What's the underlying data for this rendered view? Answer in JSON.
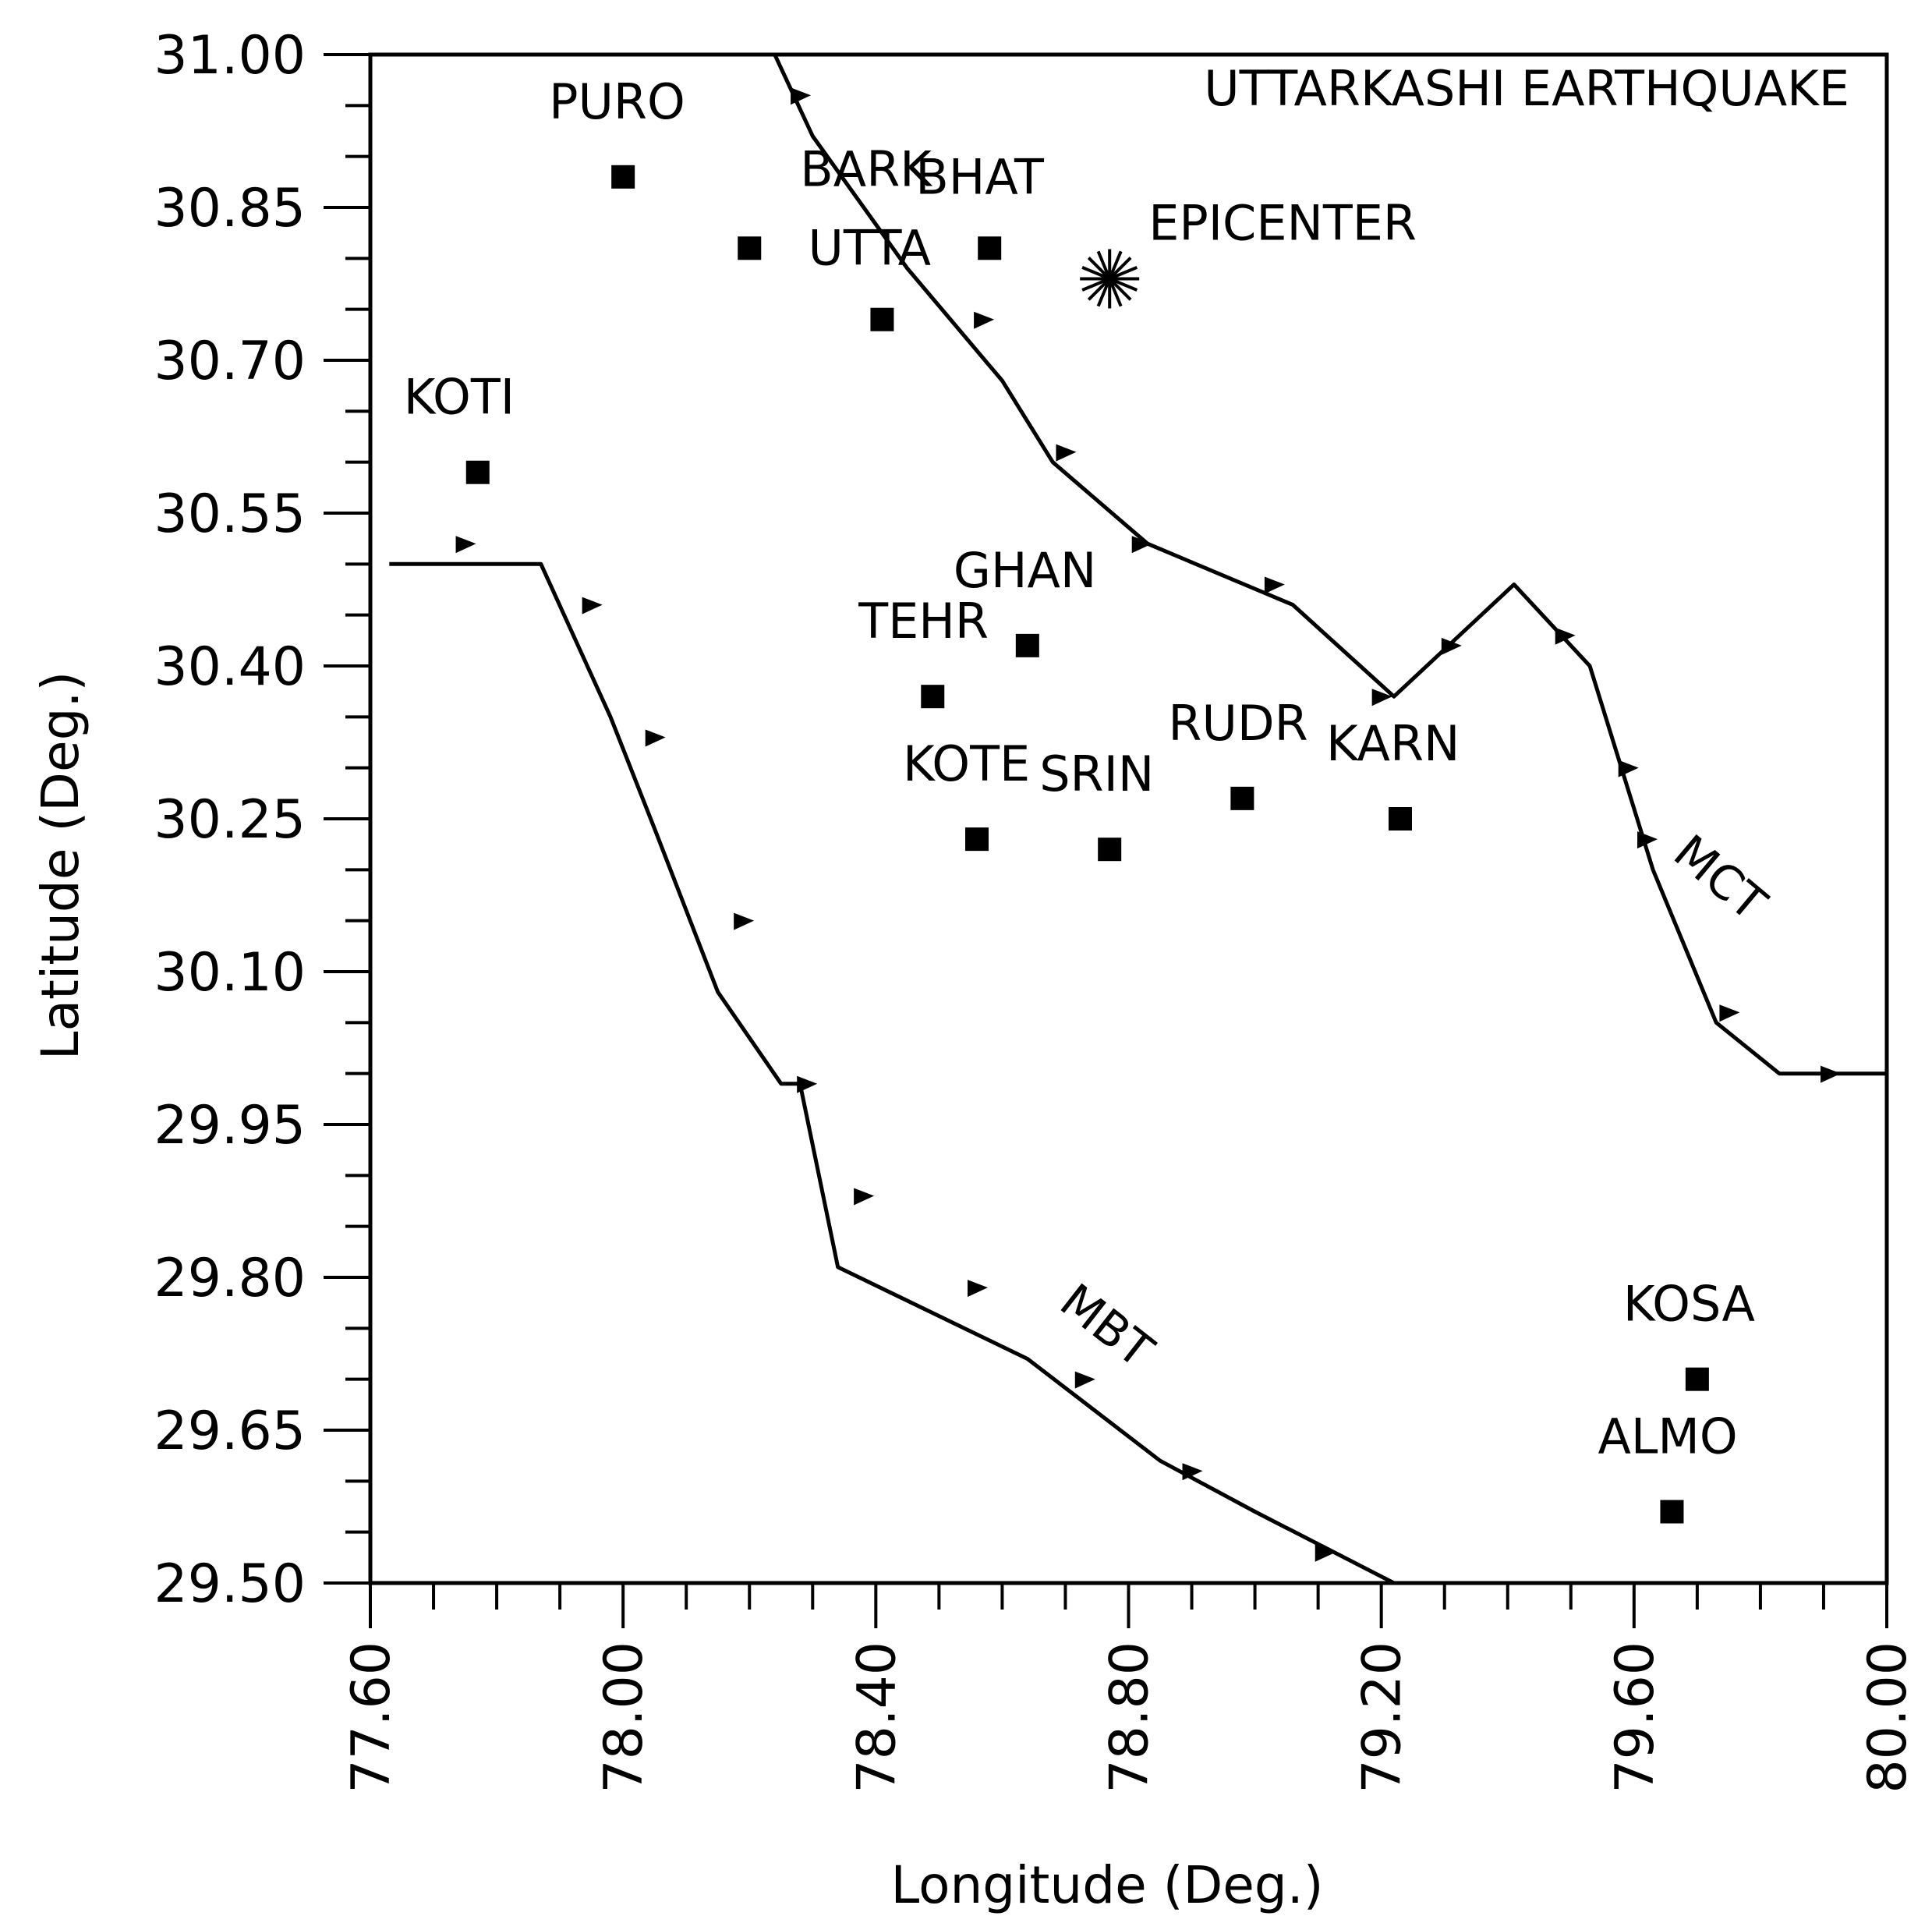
{
  "title": "UTTARKASHI EARTHQUAKE",
  "axes": {
    "x": {
      "label": "Longitude (Deg.)",
      "min": 77.6,
      "max": 80.0,
      "major_step": 0.4,
      "minor_step": 0.1,
      "tick_labels": [
        "77.60",
        "78.00",
        "78.40",
        "78.80",
        "79.20",
        "79.60",
        "80.00"
      ]
    },
    "y": {
      "label": "Latitude (Deg.)",
      "min": 29.5,
      "max": 31.0,
      "major_step": 0.15,
      "minor_step": 0.05,
      "tick_labels": [
        "29.50",
        "29.65",
        "29.80",
        "29.95",
        "30.10",
        "30.25",
        "30.40",
        "30.55",
        "30.70",
        "30.85",
        "31.00"
      ]
    }
  },
  "epicenter": {
    "label": "EPICENTER",
    "lon": 78.77,
    "lat": 30.78
  },
  "stations": [
    {
      "label": "PURO",
      "lon": 78.0,
      "lat": 30.88
    },
    {
      "label": "BARK",
      "lon": 78.2,
      "lat": 30.81
    },
    {
      "label": "BHAT",
      "lon": 78.58,
      "lat": 30.81
    },
    {
      "label": "UTTA",
      "lon": 78.41,
      "lat": 30.74
    },
    {
      "label": "KOTI",
      "lon": 77.77,
      "lat": 30.59
    },
    {
      "label": "GHAN",
      "lon": 78.64,
      "lat": 30.42
    },
    {
      "label": "TEHR",
      "lon": 78.49,
      "lat": 30.37
    },
    {
      "label": "KOTE",
      "lon": 78.56,
      "lat": 30.23
    },
    {
      "label": "SRIN",
      "lon": 78.77,
      "lat": 30.22
    },
    {
      "label": "RUDR",
      "lon": 78.98,
      "lat": 30.27
    },
    {
      "label": "KARN",
      "lon": 79.23,
      "lat": 30.25
    },
    {
      "label": "KOSA",
      "lon": 79.7,
      "lat": 29.7
    },
    {
      "label": "ALMO",
      "lon": 79.66,
      "lat": 29.57
    }
  ],
  "faults": [
    {
      "label": "MCT",
      "path": [
        [
          78.24,
          31.0
        ],
        [
          78.3,
          30.92
        ],
        [
          78.45,
          30.79
        ],
        [
          78.6,
          30.68
        ],
        [
          78.68,
          30.6
        ],
        [
          78.83,
          30.52
        ],
        [
          79.06,
          30.46
        ],
        [
          79.22,
          30.37
        ],
        [
          79.41,
          30.48
        ],
        [
          79.53,
          30.4
        ],
        [
          79.63,
          30.2
        ],
        [
          79.73,
          30.05
        ],
        [
          79.83,
          30.0
        ],
        [
          80.0,
          30.0
        ]
      ],
      "teeth": [
        [
          78.28,
          30.96
        ],
        [
          78.57,
          30.74
        ],
        [
          78.7,
          30.61
        ],
        [
          78.82,
          30.52
        ],
        [
          79.03,
          30.48
        ],
        [
          79.2,
          30.37
        ],
        [
          79.31,
          30.42
        ],
        [
          79.49,
          30.43
        ],
        [
          79.59,
          30.3
        ],
        [
          79.62,
          30.23
        ],
        [
          79.75,
          30.06
        ],
        [
          79.91,
          30.0
        ]
      ]
    },
    {
      "label": "MBT",
      "path": [
        [
          77.63,
          30.5
        ],
        [
          77.87,
          30.5
        ],
        [
          77.98,
          30.35
        ],
        [
          78.05,
          30.24
        ],
        [
          78.15,
          30.08
        ],
        [
          78.25,
          29.99
        ],
        [
          78.28,
          29.99
        ],
        [
          78.31,
          29.9
        ],
        [
          78.34,
          29.81
        ],
        [
          78.64,
          29.72
        ],
        [
          78.85,
          29.62
        ],
        [
          79.0,
          29.57
        ],
        [
          79.22,
          29.5
        ]
      ],
      "teeth": [
        [
          77.75,
          30.52
        ],
        [
          77.95,
          30.46
        ],
        [
          78.05,
          30.33
        ],
        [
          78.19,
          30.15
        ],
        [
          78.29,
          29.99
        ],
        [
          78.38,
          29.88
        ],
        [
          78.56,
          29.79
        ],
        [
          78.73,
          29.7
        ],
        [
          78.9,
          29.61
        ],
        [
          79.11,
          29.53
        ]
      ]
    }
  ]
}
